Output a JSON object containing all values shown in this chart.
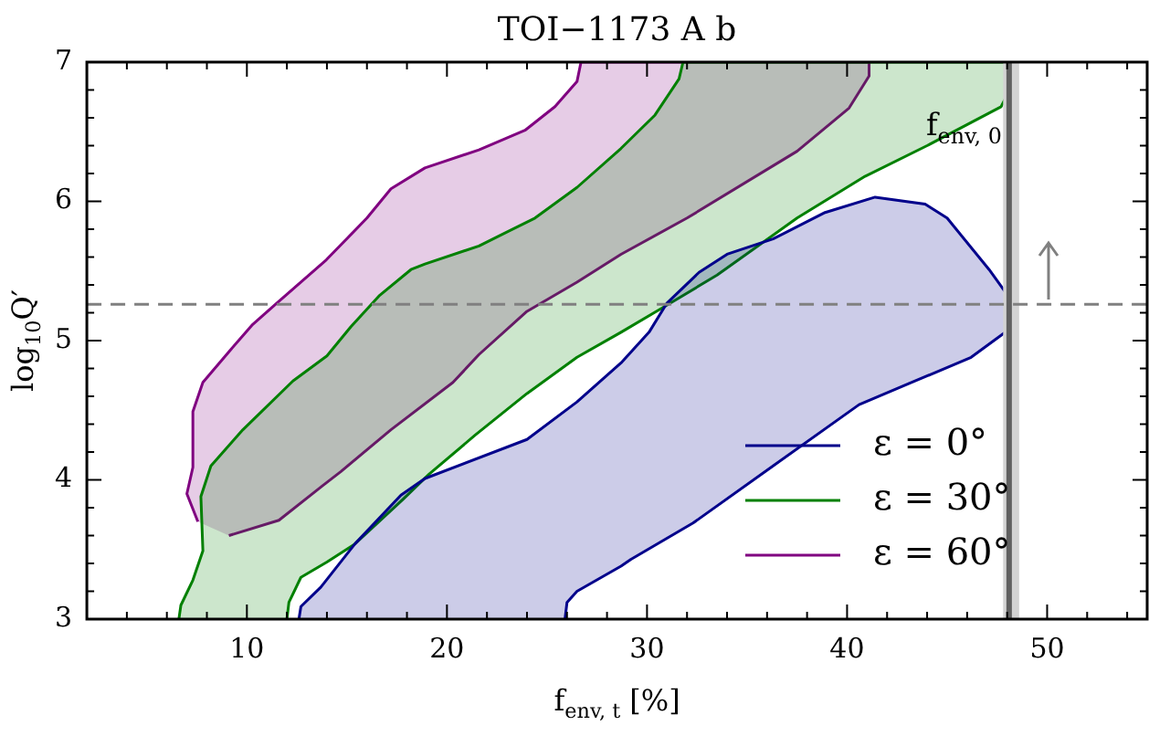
{
  "chart_data": {
    "type": "area",
    "title": "TOI−1173 A b",
    "xlabel": "f$_{env, t}$ [%]",
    "ylabel": "log$_{10}$Q′",
    "xlim": [
      2,
      55
    ],
    "ylim": [
      3,
      7
    ],
    "xticks": [
      {
        "value": 4,
        "label": null
      },
      {
        "value": 6,
        "label": null
      },
      {
        "value": 8,
        "label": null
      },
      10,
      {
        "value": 12,
        "label": null
      },
      {
        "value": 14,
        "label": null
      },
      {
        "value": 16,
        "label": null
      },
      {
        "value": 18,
        "label": null
      },
      20,
      {
        "value": 22,
        "label": null
      },
      {
        "value": 24,
        "label": null
      },
      {
        "value": 26,
        "label": null
      },
      {
        "value": 28,
        "label": null
      },
      30,
      {
        "value": 32,
        "label": null
      },
      {
        "value": 34,
        "label": null
      },
      {
        "value": 36,
        "label": null
      },
      {
        "value": 38,
        "label": null
      },
      40,
      {
        "value": 42,
        "label": null
      },
      {
        "value": 44,
        "label": null
      },
      {
        "value": 46,
        "label": null
      },
      {
        "value": 48,
        "label": null
      },
      50,
      {
        "value": 52,
        "label": null
      },
      {
        "value": 54,
        "label": null
      }
    ],
    "yticks": [
      3,
      {
        "value": 3.2,
        "label": null
      },
      {
        "value": 3.4,
        "label": null
      },
      {
        "value": 3.6,
        "label": null
      },
      {
        "value": 3.8,
        "label": null
      },
      4,
      {
        "value": 4.2,
        "label": null
      },
      {
        "value": 4.4,
        "label": null
      },
      {
        "value": 4.6,
        "label": null
      },
      {
        "value": 4.8,
        "label": null
      },
      5,
      {
        "value": 5.2,
        "label": null
      },
      {
        "value": 5.4,
        "label": null
      },
      {
        "value": 5.6,
        "label": null
      },
      {
        "value": 5.8,
        "label": null
      },
      6,
      {
        "value": 6.2,
        "label": null
      },
      {
        "value": 6.4,
        "label": null
      },
      {
        "value": 6.6,
        "label": null
      },
      {
        "value": 6.8,
        "label": null
      },
      7
    ],
    "grid": false,
    "legend": "bottom right",
    "series": [
      {
        "name": "ε = 0°",
        "color": "#00008b",
        "x": [
          12.6,
          12.7,
          13.7,
          15.4,
          17.7,
          18.9,
          24.0,
          26.5,
          28.7,
          30.1,
          31.0,
          32.6,
          34.0,
          36.3,
          38.9,
          41.4,
          43.9,
          45.0,
          47.1,
          48.1,
          48.1,
          46.2,
          43.4,
          40.6,
          36.3,
          32.3,
          29.2,
          28.7,
          26.5,
          26.0,
          25.9
        ],
        "values": [
          3.0,
          3.09,
          3.23,
          3.54,
          3.89,
          4.01,
          4.29,
          4.56,
          4.84,
          5.06,
          5.27,
          5.49,
          5.62,
          5.73,
          5.92,
          6.03,
          5.98,
          5.88,
          5.51,
          5.31,
          5.08,
          4.88,
          4.71,
          4.54,
          4.1,
          3.69,
          3.43,
          3.38,
          3.2,
          3.12,
          3.0
        ]
      },
      {
        "name": "ε = 30°",
        "color": "#008000",
        "x": [
          6.6,
          6.7,
          7.3,
          7.8,
          7.7,
          8.2,
          9.8,
          12.3,
          14.0,
          15.2,
          16.6,
          18.2,
          18.9,
          21.6,
          24.4,
          26.5,
          28.7,
          30.4,
          31.6,
          31.8,
          48.1,
          48.1,
          47.7,
          44.0,
          40.9,
          37.5,
          33.5,
          30.7,
          28.7,
          26.5,
          24.0,
          21.4,
          19.1,
          17.8,
          15.4,
          14.0,
          12.7,
          12.1,
          12.0
        ],
        "values": [
          3.0,
          3.1,
          3.28,
          3.49,
          3.88,
          4.1,
          4.36,
          4.71,
          4.89,
          5.1,
          5.32,
          5.51,
          5.55,
          5.68,
          5.88,
          6.1,
          6.38,
          6.62,
          6.88,
          7.0,
          7.0,
          6.79,
          6.68,
          6.4,
          6.18,
          5.88,
          5.47,
          5.23,
          5.06,
          4.88,
          4.62,
          4.32,
          4.04,
          3.86,
          3.54,
          3.41,
          3.3,
          3.12,
          3.0
        ]
      },
      {
        "name": "ε = 60°",
        "color": "#800080",
        "x": [
          7.55,
          7.0,
          7.3,
          7.3,
          7.8,
          9.16,
          10.25,
          11.5,
          13.97,
          16.0,
          17.2,
          18.9,
          21.6,
          23.9,
          25.4,
          26.5,
          26.7,
          41.1,
          41.1,
          40.1,
          37.5,
          32.0,
          28.7,
          26.5,
          24.0,
          21.6,
          20.3,
          17.2,
          14.7,
          13.8,
          11.6,
          9.1
        ],
        "values": [
          3.7,
          3.9,
          4.09,
          4.49,
          4.7,
          4.93,
          5.11,
          5.27,
          5.58,
          5.88,
          6.09,
          6.24,
          6.37,
          6.51,
          6.68,
          6.86,
          7.0,
          7.0,
          6.9,
          6.67,
          6.36,
          5.88,
          5.62,
          5.42,
          5.21,
          4.9,
          4.7,
          4.36,
          4.06,
          3.96,
          3.71,
          3.6
        ]
      }
    ],
    "bands": [
      {
        "axis": "x",
        "from": 47.8,
        "to": 48.6,
        "color": "#d3d3d3"
      }
    ],
    "ref_lines": [
      {
        "axis": "x",
        "value": 48.1,
        "label": "f$_{env, 0}$",
        "color": "#606060",
        "line_style": "solid"
      },
      {
        "axis": "y",
        "value": 5.26,
        "color": "#808080",
        "line_style": "dashed"
      }
    ]
  }
}
